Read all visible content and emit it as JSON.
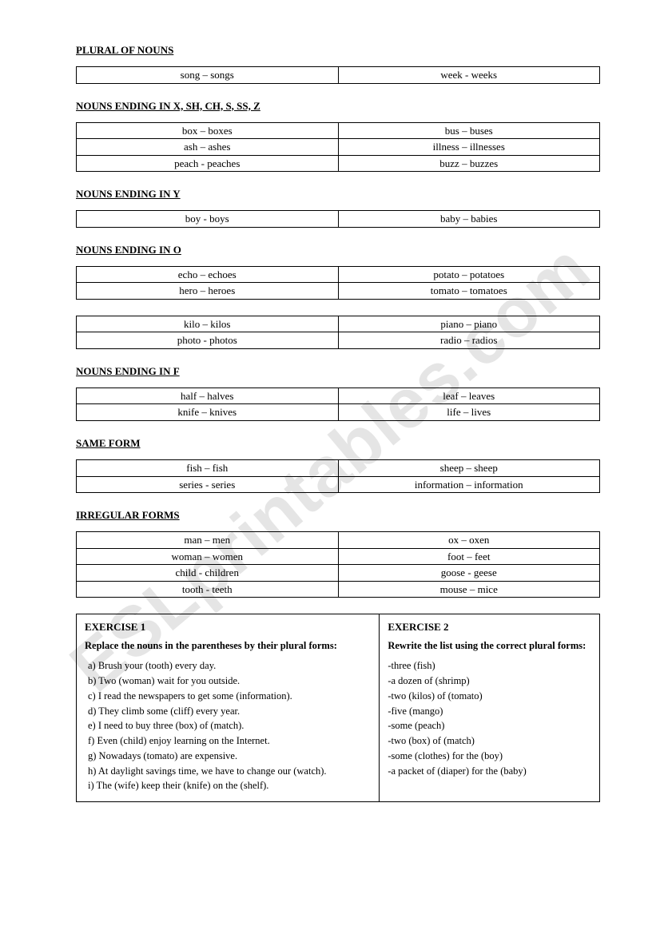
{
  "watermark": "ESLprintables.com",
  "sections": [
    {
      "title": "PLURAL OF NOUNS",
      "tables": [
        [
          [
            "song – songs",
            "week - weeks"
          ]
        ]
      ]
    },
    {
      "title": "NOUNS ENDING IN X, SH, CH, S, SS, Z",
      "tables": [
        [
          [
            "box – boxes",
            "bus – buses"
          ],
          [
            "ash – ashes",
            "illness – illnesses"
          ],
          [
            "peach - peaches",
            "buzz – buzzes"
          ]
        ]
      ]
    },
    {
      "title": "NOUNS ENDING IN Y",
      "tables": [
        [
          [
            "boy - boys",
            "baby – babies"
          ]
        ]
      ]
    },
    {
      "title": "NOUNS ENDING IN O",
      "tables": [
        [
          [
            "echo – echoes",
            "potato – potatoes"
          ],
          [
            "hero – heroes",
            "tomato – tomatoes"
          ]
        ],
        [
          [
            "kilo – kilos",
            "piano – piano"
          ],
          [
            "photo - photos",
            "radio – radios"
          ]
        ]
      ]
    },
    {
      "title": "NOUNS ENDING IN F",
      "tables": [
        [
          [
            "half – halves",
            "leaf – leaves"
          ],
          [
            "knife – knives",
            "life – lives"
          ]
        ]
      ]
    },
    {
      "title": "SAME FORM",
      "tables": [
        [
          [
            "fish – fish",
            "sheep – sheep"
          ],
          [
            "series - series",
            "information – information"
          ]
        ]
      ]
    },
    {
      "title": "IRREGULAR FORMS",
      "tables": [
        [
          [
            "man – men",
            "ox – oxen"
          ],
          [
            "woman – women",
            "foot – feet"
          ],
          [
            "child - children",
            "goose - geese"
          ],
          [
            "tooth - teeth",
            "mouse – mice"
          ]
        ]
      ]
    }
  ],
  "exercise1": {
    "title": "EXERCISE 1",
    "instruction": "Replace the nouns in the parentheses by their plural forms:",
    "items": [
      "a)   Brush your (tooth) every day.",
      "b)   Two (woman) wait for you outside.",
      "c)   I read the newspapers to get some (information).",
      "d)   They climb some (cliff) every year.",
      "e)   I need to buy three (box) of (match).",
      "f)   Even (child) enjoy learning on the Internet.",
      "g)   Nowadays (tomato) are expensive.",
      "h)   At daylight savings time, we have to change our (watch).",
      "i)   The (wife) keep their (knife) on the (shelf)."
    ]
  },
  "exercise2": {
    "title": "EXERCISE 2",
    "instruction": "Rewrite the list using the correct plural forms:",
    "items": [
      "-three (fish)",
      "-a dozen of (shrimp)",
      "-two (kilos) of (tomato)",
      "-five (mango)",
      "-some (peach)",
      "-two (box) of (match)",
      "-some (clothes) for the (boy)",
      "-a packet of (diaper) for the (baby)"
    ]
  }
}
